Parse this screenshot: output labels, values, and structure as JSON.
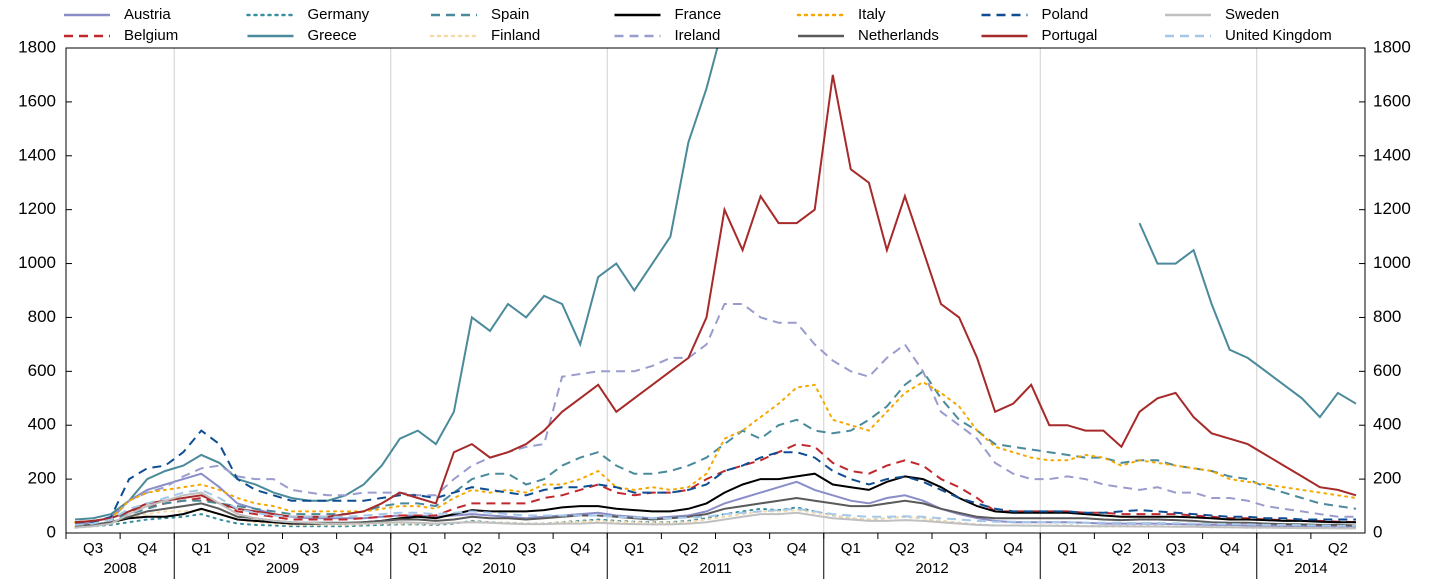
{
  "chart_data": {
    "type": "line",
    "categories": [
      null,
      "Q3",
      null,
      null,
      "Q4",
      null,
      null,
      "Q1",
      null,
      null,
      "Q2",
      null,
      null,
      "Q3",
      null,
      null,
      "Q4",
      null,
      null,
      "Q1",
      null,
      null,
      "Q2",
      null,
      null,
      "Q3",
      null,
      null,
      "Q4",
      null,
      null,
      "Q1",
      null,
      null,
      "Q2",
      null,
      null,
      "Q3",
      null,
      null,
      "Q4",
      null,
      null,
      "Q1",
      null,
      null,
      "Q2",
      null,
      null,
      "Q3",
      null,
      null,
      "Q4",
      null,
      null,
      "Q1",
      null,
      null,
      "Q2",
      null,
      null,
      "Q3",
      null,
      null,
      "Q4",
      null,
      null,
      "Q1",
      null,
      null,
      "Q2",
      null
    ],
    "years": [
      "2008",
      "2009",
      "2010",
      "2011",
      "2012",
      "2013",
      "2014"
    ],
    "ylim": [
      0,
      1800
    ],
    "yticks": [
      0,
      200,
      400,
      600,
      800,
      1000,
      1200,
      1400,
      1600,
      1800
    ],
    "y2lim": [
      0,
      1800
    ],
    "y2ticks": [
      0,
      200,
      400,
      600,
      800,
      1000,
      1200,
      1400,
      1600,
      1800
    ],
    "series": [
      {
        "name": "Austria",
        "color": "#8b8dc8",
        "style": "solid",
        "values": [
          30,
          40,
          60,
          120,
          160,
          180,
          200,
          220,
          170,
          110,
          90,
          70,
          60,
          55,
          55,
          55,
          55,
          60,
          65,
          65,
          60,
          65,
          70,
          65,
          60,
          55,
          60,
          65,
          70,
          75,
          65,
          60,
          55,
          60,
          65,
          80,
          110,
          130,
          150,
          170,
          190,
          160,
          140,
          120,
          110,
          130,
          140,
          120,
          90,
          70,
          55,
          45,
          40,
          40,
          40,
          40,
          38,
          35,
          35,
          35,
          35,
          33,
          32,
          30,
          30,
          28,
          27,
          26,
          25,
          24,
          23,
          22
        ]
      },
      {
        "name": "Belgium",
        "color": "#c0282d",
        "style": "dashed",
        "values": [
          35,
          40,
          50,
          80,
          100,
          110,
          120,
          130,
          110,
          80,
          70,
          60,
          50,
          50,
          50,
          50,
          55,
          60,
          65,
          65,
          65,
          90,
          110,
          110,
          110,
          110,
          130,
          140,
          160,
          180,
          150,
          140,
          150,
          150,
          160,
          200,
          230,
          250,
          270,
          300,
          330,
          320,
          260,
          230,
          220,
          250,
          270,
          250,
          200,
          170,
          130,
          80,
          80,
          80,
          80,
          80,
          75,
          75,
          70,
          70,
          70,
          70,
          65,
          60,
          55,
          55,
          50,
          48,
          45,
          45,
          42,
          40
        ]
      },
      {
        "name": "Germany",
        "color": "#3a8ea0",
        "style": "dotted",
        "values": [
          20,
          25,
          30,
          40,
          50,
          55,
          60,
          70,
          50,
          35,
          30,
          28,
          25,
          25,
          25,
          25,
          28,
          30,
          32,
          32,
          30,
          35,
          45,
          40,
          38,
          35,
          35,
          40,
          45,
          50,
          45,
          42,
          40,
          40,
          45,
          55,
          70,
          80,
          90,
          85,
          95,
          80,
          65,
          55,
          50,
          55,
          60,
          55,
          45,
          38,
          32,
          28,
          28,
          28,
          28,
          28,
          26,
          25,
          25,
          25,
          25,
          24,
          24,
          22,
          22,
          20,
          20,
          20,
          19,
          18,
          18,
          17
        ]
      },
      {
        "name": "Greece",
        "color": "#4a8a9a",
        "style": "solid",
        "values": [
          50,
          55,
          70,
          120,
          200,
          230,
          250,
          290,
          260,
          200,
          180,
          150,
          130,
          120,
          120,
          140,
          180,
          250,
          350,
          380,
          330,
          450,
          800,
          750,
          850,
          800,
          880,
          850,
          700,
          950,
          1000,
          900,
          1000,
          1100,
          1450,
          1650,
          1900,
          null,
          null,
          null,
          null,
          null,
          null,
          null,
          null,
          null,
          null,
          null,
          null,
          null,
          null,
          null,
          null,
          null,
          null,
          null,
          null,
          null,
          null,
          1150,
          1000,
          1000,
          1050,
          850,
          680,
          650,
          600,
          550,
          500,
          430,
          520,
          480
        ]
      },
      {
        "name": "Spain",
        "color": "#4a8a9a",
        "style": "dashed",
        "values": [
          40,
          45,
          50,
          70,
          90,
          110,
          120,
          120,
          110,
          100,
          90,
          80,
          70,
          70,
          70,
          70,
          80,
          100,
          110,
          110,
          100,
          150,
          200,
          220,
          220,
          180,
          200,
          250,
          280,
          300,
          250,
          220,
          220,
          230,
          250,
          280,
          330,
          380,
          350,
          400,
          420,
          380,
          370,
          380,
          420,
          470,
          550,
          600,
          500,
          420,
          380,
          330,
          320,
          310,
          300,
          290,
          280,
          280,
          260,
          270,
          270,
          250,
          240,
          230,
          210,
          200,
          170,
          150,
          130,
          110,
          100,
          90
        ]
      },
      {
        "name": "Finland",
        "color": "#f5d9a8",
        "style": "dotted",
        "values": [
          20,
          25,
          35,
          55,
          70,
          80,
          80,
          85,
          70,
          50,
          40,
          35,
          30,
          30,
          30,
          30,
          32,
          35,
          35,
          35,
          33,
          38,
          42,
          40,
          38,
          35,
          35,
          40,
          42,
          45,
          42,
          40,
          38,
          38,
          42,
          50,
          60,
          70,
          80,
          80,
          85,
          75,
          65,
          55,
          50,
          55,
          60,
          55,
          45,
          38,
          32,
          28,
          28,
          28,
          28,
          27,
          26,
          25,
          25,
          25,
          25,
          24,
          24,
          22,
          22,
          20,
          20,
          20,
          19,
          18,
          18,
          17
        ]
      },
      {
        "name": "France",
        "color": "#000000",
        "style": "solid",
        "values": [
          25,
          30,
          40,
          55,
          60,
          60,
          70,
          90,
          70,
          50,
          45,
          40,
          35,
          35,
          35,
          35,
          40,
          45,
          55,
          60,
          55,
          70,
          85,
          80,
          80,
          80,
          85,
          95,
          100,
          100,
          90,
          85,
          80,
          80,
          90,
          110,
          150,
          180,
          200,
          200,
          210,
          220,
          180,
          170,
          160,
          190,
          210,
          200,
          170,
          130,
          100,
          80,
          75,
          75,
          75,
          75,
          70,
          65,
          60,
          60,
          60,
          60,
          58,
          55,
          50,
          50,
          48,
          45,
          45,
          42,
          40,
          40
        ]
      },
      {
        "name": "Ireland",
        "color": "#9a9ccd",
        "style": "dashed",
        "values": [
          40,
          45,
          50,
          120,
          150,
          170,
          210,
          240,
          250,
          210,
          200,
          200,
          160,
          150,
          140,
          140,
          150,
          150,
          150,
          140,
          140,
          200,
          250,
          280,
          300,
          320,
          330,
          580,
          590,
          600,
          600,
          600,
          620,
          650,
          650,
          700,
          850,
          850,
          800,
          780,
          780,
          700,
          640,
          600,
          580,
          650,
          700,
          600,
          450,
          400,
          350,
          260,
          220,
          200,
          200,
          210,
          200,
          180,
          170,
          160,
          170,
          150,
          150,
          130,
          130,
          120,
          100,
          90,
          80,
          70,
          60,
          60
        ]
      },
      {
        "name": "Italy",
        "color": "#f5a800",
        "style": "dotted",
        "values": [
          40,
          45,
          55,
          120,
          150,
          160,
          170,
          180,
          160,
          130,
          110,
          100,
          80,
          80,
          80,
          80,
          80,
          90,
          100,
          100,
          90,
          130,
          160,
          150,
          160,
          150,
          180,
          180,
          200,
          230,
          170,
          160,
          170,
          160,
          170,
          220,
          350,
          380,
          430,
          480,
          540,
          550,
          420,
          400,
          380,
          450,
          520,
          560,
          520,
          470,
          380,
          320,
          300,
          280,
          270,
          270,
          290,
          280,
          250,
          270,
          260,
          250,
          240,
          230,
          200,
          190,
          180,
          170,
          160,
          150,
          140,
          130
        ]
      },
      {
        "name": "Netherlands",
        "color": "#5a5a5a",
        "style": "solid",
        "values": [
          25,
          30,
          40,
          60,
          80,
          90,
          100,
          110,
          90,
          60,
          55,
          45,
          40,
          38,
          38,
          38,
          40,
          45,
          50,
          50,
          45,
          50,
          60,
          55,
          55,
          50,
          55,
          60,
          65,
          65,
          60,
          55,
          50,
          55,
          60,
          70,
          90,
          100,
          110,
          120,
          130,
          120,
          110,
          100,
          100,
          110,
          120,
          110,
          90,
          75,
          60,
          55,
          55,
          55,
          55,
          55,
          55,
          50,
          48,
          50,
          50,
          48,
          45,
          40,
          38,
          38,
          35,
          33,
          32,
          30,
          30,
          28
        ]
      },
      {
        "name": "Poland",
        "color": "#0e4d92",
        "style": "dashed",
        "values": [
          40,
          40,
          60,
          200,
          240,
          250,
          300,
          380,
          330,
          200,
          160,
          140,
          120,
          120,
          120,
          120,
          120,
          130,
          140,
          140,
          130,
          150,
          170,
          160,
          150,
          140,
          160,
          170,
          170,
          180,
          170,
          150,
          150,
          150,
          160,
          180,
          230,
          250,
          280,
          300,
          300,
          280,
          230,
          200,
          180,
          200,
          210,
          190,
          160,
          130,
          110,
          90,
          80,
          80,
          80,
          80,
          75,
          75,
          80,
          85,
          80,
          75,
          70,
          65,
          60,
          60,
          55,
          55,
          50,
          50,
          50,
          50
        ]
      },
      {
        "name": "Portugal",
        "color": "#a62a2a",
        "style": "solid",
        "values": [
          40,
          45,
          55,
          80,
          110,
          120,
          130,
          140,
          110,
          90,
          80,
          70,
          60,
          60,
          60,
          70,
          80,
          110,
          150,
          130,
          110,
          300,
          330,
          280,
          300,
          330,
          380,
          450,
          500,
          550,
          450,
          500,
          550,
          600,
          650,
          800,
          1200,
          1050,
          1250,
          1150,
          1150,
          1200,
          1700,
          1350,
          1300,
          1050,
          1250,
          1050,
          850,
          800,
          650,
          450,
          480,
          550,
          400,
          400,
          380,
          380,
          320,
          450,
          500,
          520,
          430,
          370,
          350,
          330,
          290,
          250,
          210,
          170,
          160,
          140
        ]
      },
      {
        "name": "Sweden",
        "color": "#c0c0c0",
        "style": "solid",
        "values": [
          20,
          25,
          35,
          70,
          100,
          120,
          140,
          150,
          110,
          70,
          55,
          45,
          40,
          38,
          35,
          35,
          35,
          38,
          40,
          38,
          35,
          38,
          40,
          38,
          35,
          33,
          33,
          35,
          35,
          38,
          35,
          33,
          32,
          32,
          35,
          40,
          50,
          60,
          70,
          70,
          75,
          65,
          55,
          50,
          45,
          45,
          48,
          45,
          40,
          35,
          30,
          28,
          28,
          27,
          27,
          26,
          25,
          25,
          25,
          24,
          24,
          23,
          23,
          22,
          21,
          20,
          20,
          19,
          18,
          18,
          17,
          17
        ]
      },
      {
        "name": "United Kingdom",
        "color": "#a5c8e8",
        "style": "dashed",
        "values": [
          30,
          35,
          50,
          90,
          110,
          130,
          150,
          160,
          130,
          90,
          75,
          65,
          60,
          60,
          60,
          60,
          65,
          70,
          75,
          75,
          70,
          75,
          80,
          75,
          70,
          65,
          65,
          65,
          65,
          65,
          60,
          58,
          55,
          55,
          58,
          60,
          70,
          75,
          80,
          85,
          90,
          80,
          70,
          65,
          60,
          60,
          62,
          60,
          55,
          50,
          45,
          42,
          42,
          40,
          40,
          40,
          38,
          38,
          38,
          37,
          37,
          36,
          35,
          34,
          33,
          32,
          30,
          30,
          29,
          28,
          27,
          27
        ]
      }
    ]
  }
}
